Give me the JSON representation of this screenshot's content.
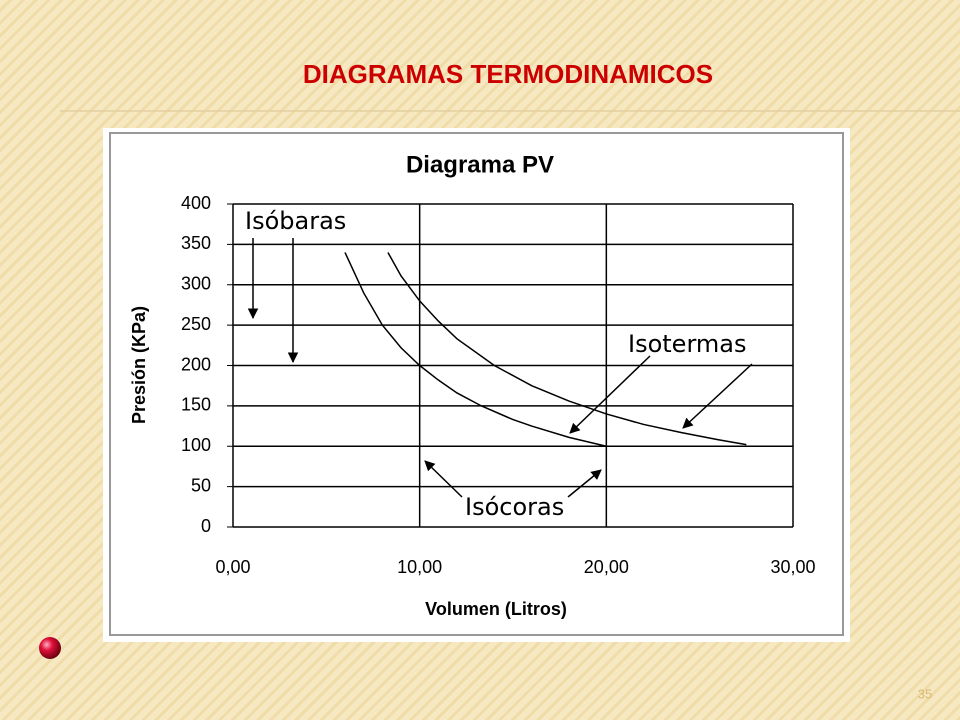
{
  "slide": {
    "title": "DIAGRAMAS TERMODINAMICOS",
    "page_number": "35"
  },
  "chart_data": {
    "type": "line",
    "title": "Diagrama PV",
    "x_label": "Volumen (Litros)",
    "y_label": "Presión (KPa)",
    "xlim": [
      0,
      30
    ],
    "xticks": [
      {
        "value": 0,
        "label": "0,00"
      },
      {
        "value": 10,
        "label": "10,00"
      },
      {
        "value": 20,
        "label": "20,00"
      },
      {
        "value": 30,
        "label": "30,00"
      }
    ],
    "ylim": [
      0,
      400
    ],
    "yticks": [
      0,
      50,
      100,
      150,
      200,
      250,
      300,
      350,
      400
    ],
    "grid": true,
    "series": [
      {
        "color": "#000000",
        "x": [
          6,
          7,
          8,
          9,
          10,
          11,
          12,
          13.3,
          15,
          16,
          18,
          20
        ],
        "values": [
          340,
          290,
          250,
          222,
          200,
          182,
          166,
          150,
          133,
          125,
          111,
          100
        ]
      },
      {
        "color": "#000000",
        "x": [
          8.3,
          9,
          10,
          11,
          12,
          14,
          16,
          18,
          20,
          22,
          24,
          26,
          27.5
        ],
        "values": [
          340,
          311,
          280,
          255,
          233,
          200,
          175,
          156,
          140,
          127,
          117,
          108,
          102
        ]
      }
    ],
    "annotations": [
      "Isóbaras",
      "Isotermas",
      "Isócoras"
    ]
  }
}
